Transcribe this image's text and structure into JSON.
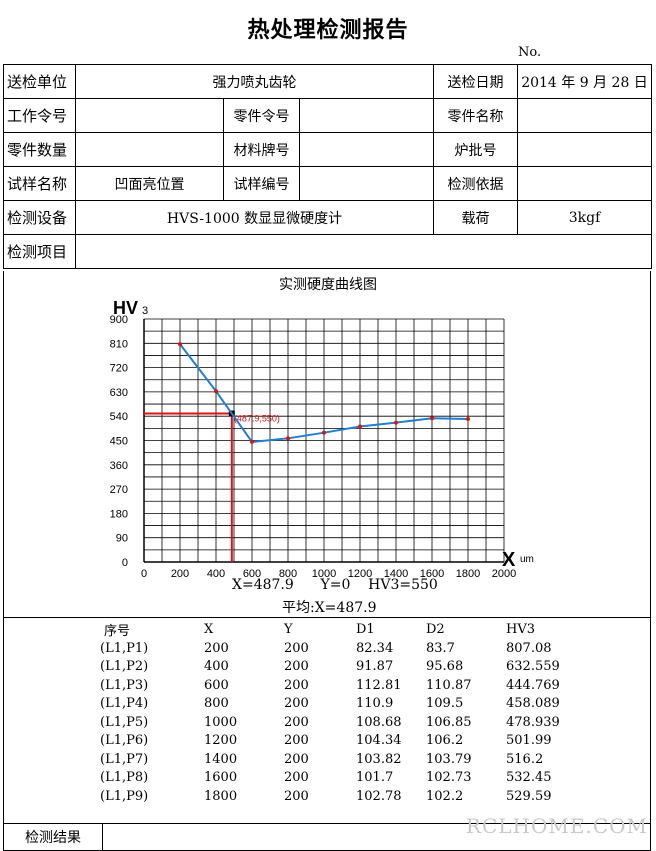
{
  "title": "热处理检测报告",
  "no_label": "No.",
  "form": {
    "row1": {
      "l1": "送检单位",
      "v1": "强力喷丸齿轮",
      "l2": "送检日期",
      "v2": "2014 年 9 月 28 日"
    },
    "row2": {
      "l1": "工作令号",
      "v1": "",
      "l2": "零件令号",
      "v2": "",
      "l3": "零件名称",
      "v3": ""
    },
    "row3": {
      "l1": "零件数量",
      "v1": "",
      "l2": "材料牌号",
      "v2": "",
      "l3": "炉批号",
      "v3": ""
    },
    "row4": {
      "l1": "试样名称",
      "v1": "凹面亮位置",
      "l2": "试样编号",
      "v2": "",
      "l3": "检测依据",
      "v3": ""
    },
    "row5": {
      "l1": "检测设备",
      "v1": "HVS-1000 数显显微硬度计",
      "l2": "载荷",
      "v2": "3kgf"
    },
    "row6": {
      "l1": "检测项目",
      "v1": ""
    }
  },
  "chart_section_title": "实测硬度曲线图",
  "chart_data": {
    "type": "line",
    "ylabel": "HV3",
    "xlabel": "X",
    "xunit": "um",
    "xlim": [
      0,
      2000
    ],
    "ylim": [
      0,
      900
    ],
    "xticks": [
      0,
      200,
      400,
      600,
      800,
      1000,
      1200,
      1400,
      1600,
      1800,
      2000
    ],
    "yticks": [
      0,
      90,
      180,
      270,
      360,
      450,
      540,
      630,
      720,
      810,
      900
    ],
    "x": [
      200,
      400,
      600,
      800,
      1000,
      1200,
      1400,
      1600,
      1800
    ],
    "y": [
      807.08,
      632.559,
      444.769,
      458.089,
      478.939,
      501.99,
      516.2,
      532.45,
      529.59
    ],
    "marker": {
      "x": 487.9,
      "y": 550,
      "label": "(487.9,550)"
    },
    "line_color": "#1e7fd6",
    "point_color": "#e01010",
    "marker_color": "#e01010"
  },
  "readout": "X=487.9      Y=0    HV3=550",
  "average": "平均:X=487.9",
  "table": {
    "headers": [
      "序号",
      "X",
      "Y",
      "D1",
      "D2",
      "HV3"
    ],
    "rows": [
      [
        "(L1,P1)",
        "200",
        "200",
        "82.34",
        "83.7",
        "807.08"
      ],
      [
        "(L1,P2)",
        "400",
        "200",
        "91.87",
        "95.68",
        "632.559"
      ],
      [
        "(L1,P3)",
        "600",
        "200",
        "112.81",
        "110.87",
        "444.769"
      ],
      [
        "(L1,P4)",
        "800",
        "200",
        "110.9",
        "109.5",
        "458.089"
      ],
      [
        "(L1,P5)",
        "1000",
        "200",
        "108.68",
        "106.85",
        "478.939"
      ],
      [
        "(L1,P6)",
        "1200",
        "200",
        "104.34",
        "106.2",
        "501.99"
      ],
      [
        "(L1,P7)",
        "1400",
        "200",
        "103.82",
        "103.79",
        "516.2"
      ],
      [
        "(L1,P8)",
        "1600",
        "200",
        "101.7",
        "102.73",
        "532.45"
      ],
      [
        "(L1,P9)",
        "1800",
        "200",
        "102.78",
        "102.2",
        "529.59"
      ]
    ]
  },
  "result_label": "检测结果",
  "result_value": "",
  "watermark": "RCLHOME.COM"
}
